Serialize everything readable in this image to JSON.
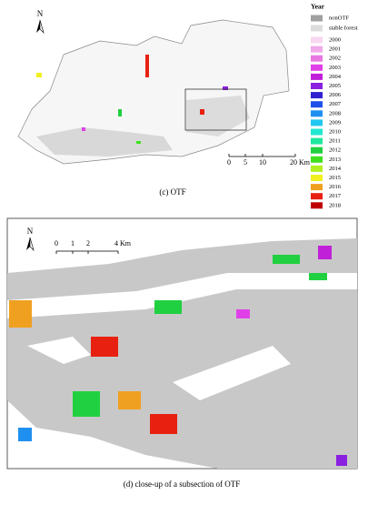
{
  "legend": {
    "title": "Year",
    "items": [
      {
        "label": "nonOTF",
        "color": "#a0a0a0"
      },
      {
        "label": "stable forest",
        "color": "#dcdcdc"
      },
      {
        "label": "2000",
        "color": "#f7d8f0"
      },
      {
        "label": "2001",
        "color": "#f0a8e8"
      },
      {
        "label": "2002",
        "color": "#e878e0"
      },
      {
        "label": "2003",
        "color": "#e040e8"
      },
      {
        "label": "2004",
        "color": "#c020d8"
      },
      {
        "label": "2005",
        "color": "#8a20e0"
      },
      {
        "label": "2006",
        "color": "#3020d0"
      },
      {
        "label": "2007",
        "color": "#2050e8"
      },
      {
        "label": "2008",
        "color": "#2090f0"
      },
      {
        "label": "2009",
        "color": "#20c8f0"
      },
      {
        "label": "2010",
        "color": "#20e8d0"
      },
      {
        "label": "2011",
        "color": "#20e8a0"
      },
      {
        "label": "2012",
        "color": "#20d040"
      },
      {
        "label": "2013",
        "color": "#40e020"
      },
      {
        "label": "2014",
        "color": "#b0f020"
      },
      {
        "label": "2015",
        "color": "#f0f020"
      },
      {
        "label": "2016",
        "color": "#f0a020"
      },
      {
        "label": "2017",
        "color": "#e82010"
      },
      {
        "label": "2018",
        "color": "#c00000"
      }
    ]
  },
  "panel_c": {
    "north": "N",
    "scale_labels": [
      "0",
      "5",
      "10",
      "20 Km"
    ],
    "caption": "(c) OTF"
  },
  "panel_d": {
    "north": "N",
    "scale_labels": [
      "0",
      "1",
      "2",
      "4 Km"
    ],
    "caption": "(d) close-up of a subsection of OTF"
  }
}
